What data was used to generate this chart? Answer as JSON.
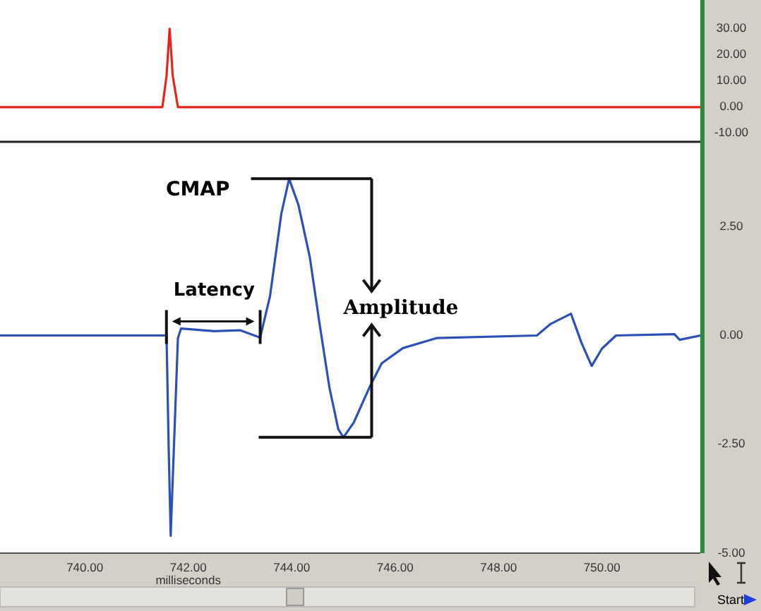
{
  "chart_data": [
    {
      "type": "line",
      "x": [
        738.36,
        741.5,
        741.58,
        741.64,
        741.7,
        741.8,
        751.9
      ],
      "series": [
        {
          "color": "#e8231e",
          "values": [
            0,
            0,
            12,
            30,
            12,
            0,
            0
          ]
        }
      ],
      "xlim": [
        738.36,
        751.9
      ],
      "ylim": [
        -13,
        41
      ],
      "yticks": [
        {
          "value": 30,
          "label": "30.00"
        },
        {
          "value": 20,
          "label": "20.00"
        },
        {
          "value": 10,
          "label": "10.00"
        },
        {
          "value": 0,
          "label": "0.00"
        },
        {
          "value": -10,
          "label": "-10.00"
        }
      ],
      "tick_labels": "y"
    },
    {
      "type": "line",
      "xlabel": "milliseconds",
      "x": [
        738.36,
        741.58,
        741.62,
        741.66,
        741.8,
        741.86,
        742.5,
        743.0,
        743.39,
        743.58,
        743.8,
        743.95,
        744.13,
        744.35,
        744.54,
        744.73,
        744.9,
        745.0,
        745.2,
        745.5,
        745.74,
        746.15,
        746.8,
        748.74,
        749.0,
        749.4,
        749.6,
        749.8,
        750.0,
        750.27,
        751.4,
        751.5,
        751.9
      ],
      "series": [
        {
          "color": "#2c4fb8",
          "values": [
            0,
            0,
            -2.5,
            -4.6,
            -0.06,
            0.16,
            0.1,
            0.12,
            -0.05,
            0.9,
            2.8,
            3.6,
            3.0,
            1.8,
            0.26,
            -1.2,
            -2.15,
            -2.34,
            -2.0,
            -1.2,
            -0.64,
            -0.29,
            -0.06,
            0,
            0.26,
            0.5,
            -0.16,
            -0.7,
            -0.3,
            0,
            0.03,
            -0.1,
            0
          ]
        }
      ],
      "xlim": [
        738.36,
        751.9
      ],
      "ylim": [
        -5,
        4.4
      ],
      "xticks": [
        {
          "value": 740,
          "label": "740.00"
        },
        {
          "value": 742,
          "label": "742.00"
        },
        {
          "value": 744,
          "label": "744.00"
        },
        {
          "value": 746,
          "label": "746.00"
        },
        {
          "value": 748,
          "label": "748.00"
        },
        {
          "value": 750,
          "label": "750.00"
        }
      ],
      "yticks": [
        {
          "value": 2.5,
          "label": "2.50"
        },
        {
          "value": 0,
          "label": "0.00"
        },
        {
          "value": -2.5,
          "label": "-2.50"
        },
        {
          "value": -5,
          "label": "-5.00"
        }
      ],
      "annotations": [
        "CMAP",
        {
          "text": "Latency",
          "x": 742.5,
          "y": 0
        },
        "Amplitude",
        "Start"
      ]
    }
  ]
}
